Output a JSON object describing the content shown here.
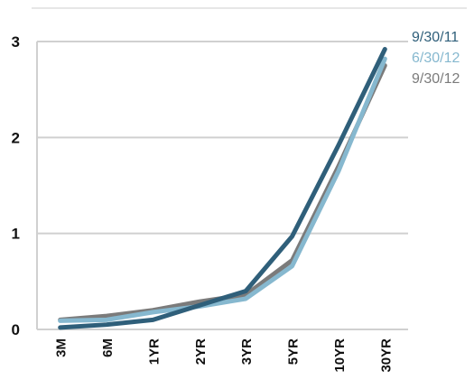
{
  "chart_data": {
    "type": "line",
    "categories": [
      "3M",
      "6M",
      "1YR",
      "2YR",
      "3YR",
      "5YR",
      "10YR",
      "30YR"
    ],
    "ylim": [
      0,
      3
    ],
    "yticks": [
      "0",
      "1",
      "2",
      "3"
    ],
    "grid": true,
    "legend_position": "top-right",
    "series": [
      {
        "name": "9/30/11",
        "color": "#2f5f7a",
        "values": [
          0.02,
          0.05,
          0.1,
          0.25,
          0.4,
          0.97,
          1.92,
          2.92
        ]
      },
      {
        "name": "6/30/12",
        "color": "#86b8cf",
        "values": [
          0.09,
          0.1,
          0.18,
          0.24,
          0.32,
          0.66,
          1.65,
          2.82
        ]
      },
      {
        "name": "9/30/12",
        "color": "#7b7b7b",
        "values": [
          0.1,
          0.14,
          0.2,
          0.29,
          0.36,
          0.72,
          1.7,
          2.75
        ]
      }
    ]
  }
}
